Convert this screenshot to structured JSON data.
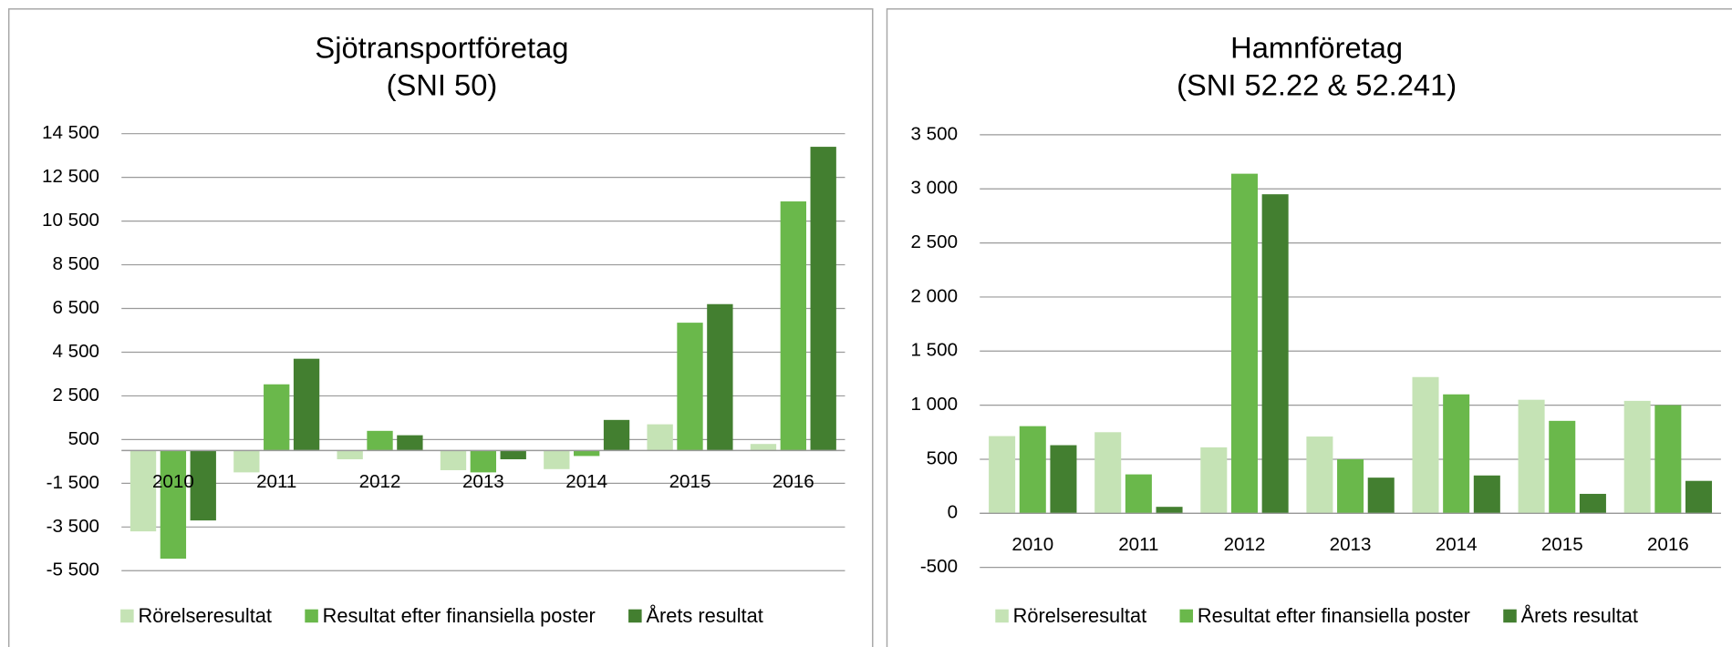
{
  "chart_data": [
    {
      "type": "bar",
      "title": "Sjötransportföretag",
      "subtitle": "(SNI 50)",
      "categories": [
        "2010",
        "2011",
        "2012",
        "2013",
        "2014",
        "2015",
        "2016"
      ],
      "series": [
        {
          "name": "Rörelseresultat",
          "color": "#c5e3b5",
          "values": [
            -3700,
            -1000,
            -400,
            -900,
            -850,
            1200,
            300
          ]
        },
        {
          "name": "Resultat efter finansiella poster",
          "color": "#6ab84b",
          "values": [
            -4950,
            3030,
            900,
            -1000,
            -250,
            5850,
            11400
          ]
        },
        {
          "name": "Årets resultat",
          "color": "#437f30",
          "values": [
            -3200,
            4200,
            700,
            -400,
            1400,
            6700,
            13900
          ]
        }
      ],
      "ylim": [
        -5500,
        14500
      ],
      "yticks": [
        {
          "value": -5500,
          "label": "-5 500"
        },
        {
          "value": -3500,
          "label": "-3 500"
        },
        {
          "value": -1500,
          "label": "-1 500"
        },
        500,
        {
          "value": 2500,
          "label": "2 500"
        },
        {
          "value": 4500,
          "label": "4 500"
        },
        {
          "value": 6500,
          "label": "6 500"
        },
        {
          "value": 8500,
          "label": "8 500"
        },
        {
          "value": 10500,
          "label": "10 500"
        },
        {
          "value": 12500,
          "label": "12 500"
        },
        {
          "value": 14500,
          "label": "14 500"
        }
      ],
      "grid": true,
      "legend": "bottom"
    },
    {
      "type": "bar",
      "title": "Hamnföretag",
      "subtitle": "(SNI 52.22 & 52.241)",
      "categories": [
        "2010",
        "2011",
        "2012",
        "2013",
        "2014",
        "2015",
        "2016"
      ],
      "series": [
        {
          "name": "Rörelseresultat",
          "color": "#c5e3b5",
          "values": [
            714,
            750,
            610,
            710,
            1260,
            1050,
            1040
          ]
        },
        {
          "name": "Resultat efter finansiella poster",
          "color": "#6ab84b",
          "values": [
            806,
            360,
            3140,
            500,
            1100,
            855,
            1000
          ]
        },
        {
          "name": "Årets resultat",
          "color": "#437f30",
          "values": [
            630,
            60,
            2950,
            330,
            350,
            180,
            300
          ]
        }
      ],
      "ylim": [
        -500,
        3500
      ],
      "yticks": [
        -500,
        0,
        500,
        {
          "value": 1000,
          "label": "1 000"
        },
        {
          "value": 1500,
          "label": "1 500"
        },
        {
          "value": 2000,
          "label": "2 000"
        },
        {
          "value": 2500,
          "label": "2 500"
        },
        {
          "value": 3000,
          "label": "3 000"
        },
        {
          "value": 3500,
          "label": "3 500"
        }
      ],
      "grid": true,
      "legend": "bottom"
    }
  ]
}
